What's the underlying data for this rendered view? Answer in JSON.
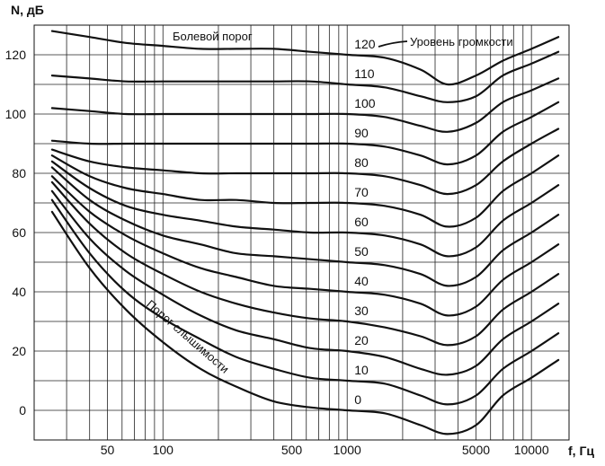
{
  "chart_data": {
    "type": "line",
    "title": "",
    "ylabel": "N, дБ",
    "xlabel": "f, Гц",
    "x_scale": "log",
    "xlim": [
      20,
      16000
    ],
    "ylim": [
      -10,
      130
    ],
    "grid": true,
    "x_ticks": [
      50,
      100,
      500,
      1000,
      5000,
      10000
    ],
    "x_tick_labels": [
      "50",
      "100",
      "500",
      "1000",
      "5000",
      "10000"
    ],
    "y_ticks": [
      0,
      20,
      40,
      60,
      80,
      100,
      120
    ],
    "y_tick_labels": [
      "0",
      "20",
      "40",
      "60",
      "80",
      "100",
      "120"
    ],
    "annotations": {
      "pain_threshold": "Болевой порог",
      "loudness_level": "Уровень громкости",
      "hearing_threshold": "Порог слышимости"
    },
    "x": [
      25,
      40,
      63,
      100,
      160,
      250,
      400,
      630,
      1000,
      1600,
      2500,
      3500,
      5000,
      7000,
      10000,
      14000
    ],
    "series": [
      {
        "name": "0",
        "label_x": 1000,
        "values": [
          67,
          48,
          34,
          23,
          14,
          8,
          3,
          1,
          0,
          -1,
          -5,
          -8,
          -5,
          5,
          11,
          17
        ]
      },
      {
        "name": "10",
        "label_x": 1000,
        "values": [
          71,
          53,
          40,
          31,
          24,
          18,
          14,
          11,
          10,
          9,
          5,
          2,
          5,
          14,
          20,
          26
        ]
      },
      {
        "name": "20",
        "label_x": 1000,
        "values": [
          74,
          58,
          47,
          39,
          32,
          27,
          24,
          21,
          20,
          18,
          14,
          12,
          15,
          24,
          30,
          36
        ]
      },
      {
        "name": "30",
        "label_x": 1000,
        "values": [
          77,
          63,
          53,
          46,
          40,
          36,
          33,
          31,
          30,
          28,
          25,
          22,
          25,
          34,
          40,
          46
        ]
      },
      {
        "name": "40",
        "label_x": 1000,
        "values": [
          79,
          67,
          59,
          53,
          48,
          45,
          42,
          41,
          40,
          39,
          36,
          32,
          35,
          44,
          50,
          56
        ]
      },
      {
        "name": "50",
        "label_x": 1000,
        "values": [
          82,
          71,
          64,
          59,
          56,
          53,
          52,
          51,
          50,
          49,
          46,
          42,
          45,
          54,
          60,
          66
        ]
      },
      {
        "name": "60",
        "label_x": 1000,
        "values": [
          84,
          75,
          69,
          66,
          64,
          62,
          61,
          60,
          60,
          59,
          56,
          52,
          55,
          64,
          70,
          76
        ]
      },
      {
        "name": "70",
        "label_x": 1000,
        "values": [
          86,
          79,
          75,
          73,
          71,
          71,
          70,
          70,
          70,
          69,
          66,
          62,
          65,
          74,
          80,
          86
        ]
      },
      {
        "name": "80",
        "label_x": 1000,
        "values": [
          88,
          84,
          82,
          81,
          80,
          80,
          80,
          80,
          80,
          79,
          76,
          73,
          76,
          84,
          90,
          95
        ]
      },
      {
        "name": "90",
        "label_x": 1000,
        "values": [
          91,
          90,
          90,
          90,
          90,
          90,
          90,
          90,
          90,
          89,
          86,
          83,
          86,
          94,
          99,
          104
        ]
      },
      {
        "name": "100",
        "label_x": 1000,
        "values": [
          102,
          101,
          100,
          100,
          100,
          100,
          100,
          100,
          100,
          99,
          96,
          94,
          97,
          104,
          108,
          112
        ]
      },
      {
        "name": "110",
        "label_x": 1000,
        "values": [
          113,
          112,
          111,
          111,
          111,
          111,
          111,
          111,
          110,
          109,
          106,
          104,
          106,
          113,
          117,
          121
        ]
      },
      {
        "name": "120",
        "label_x": 1000,
        "values": [
          128,
          126,
          124,
          123,
          122,
          122,
          122,
          121,
          120,
          119,
          115,
          110,
          113,
          118,
          122,
          126
        ]
      }
    ]
  }
}
